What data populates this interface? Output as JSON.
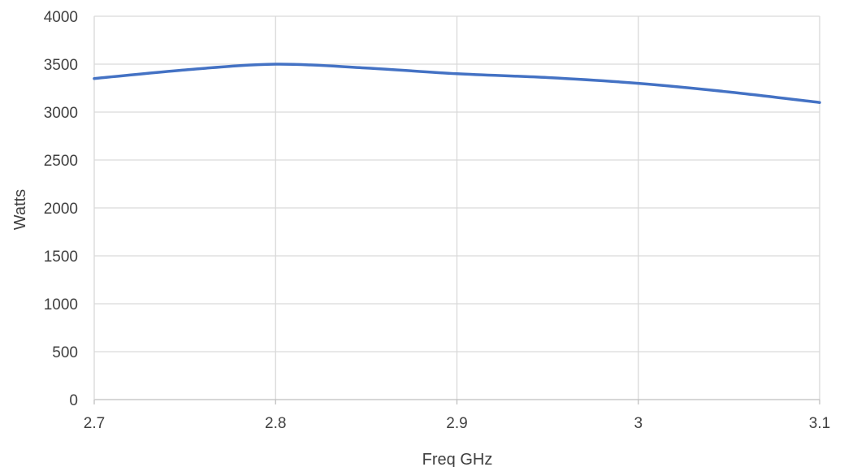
{
  "chart_data": {
    "type": "line",
    "title": "",
    "xlabel": "Freq GHz",
    "ylabel": "Watts",
    "xlim": [
      2.7,
      3.1
    ],
    "ylim": [
      0,
      4000
    ],
    "x_ticks": [
      "2.7",
      "2.8",
      "2.9",
      "3",
      "3.1"
    ],
    "y_ticks": [
      "0",
      "500",
      "1000",
      "1500",
      "2000",
      "2500",
      "3000",
      "3500",
      "4000"
    ],
    "grid": true,
    "legend": "none",
    "series": [
      {
        "color": "#4472C4",
        "x": [
          2.7,
          2.75,
          2.8,
          2.85,
          2.9,
          2.95,
          3.0,
          3.05,
          3.1
        ],
        "y": [
          3350,
          3440,
          3500,
          3460,
          3400,
          3360,
          3300,
          3210,
          3100
        ]
      }
    ]
  }
}
